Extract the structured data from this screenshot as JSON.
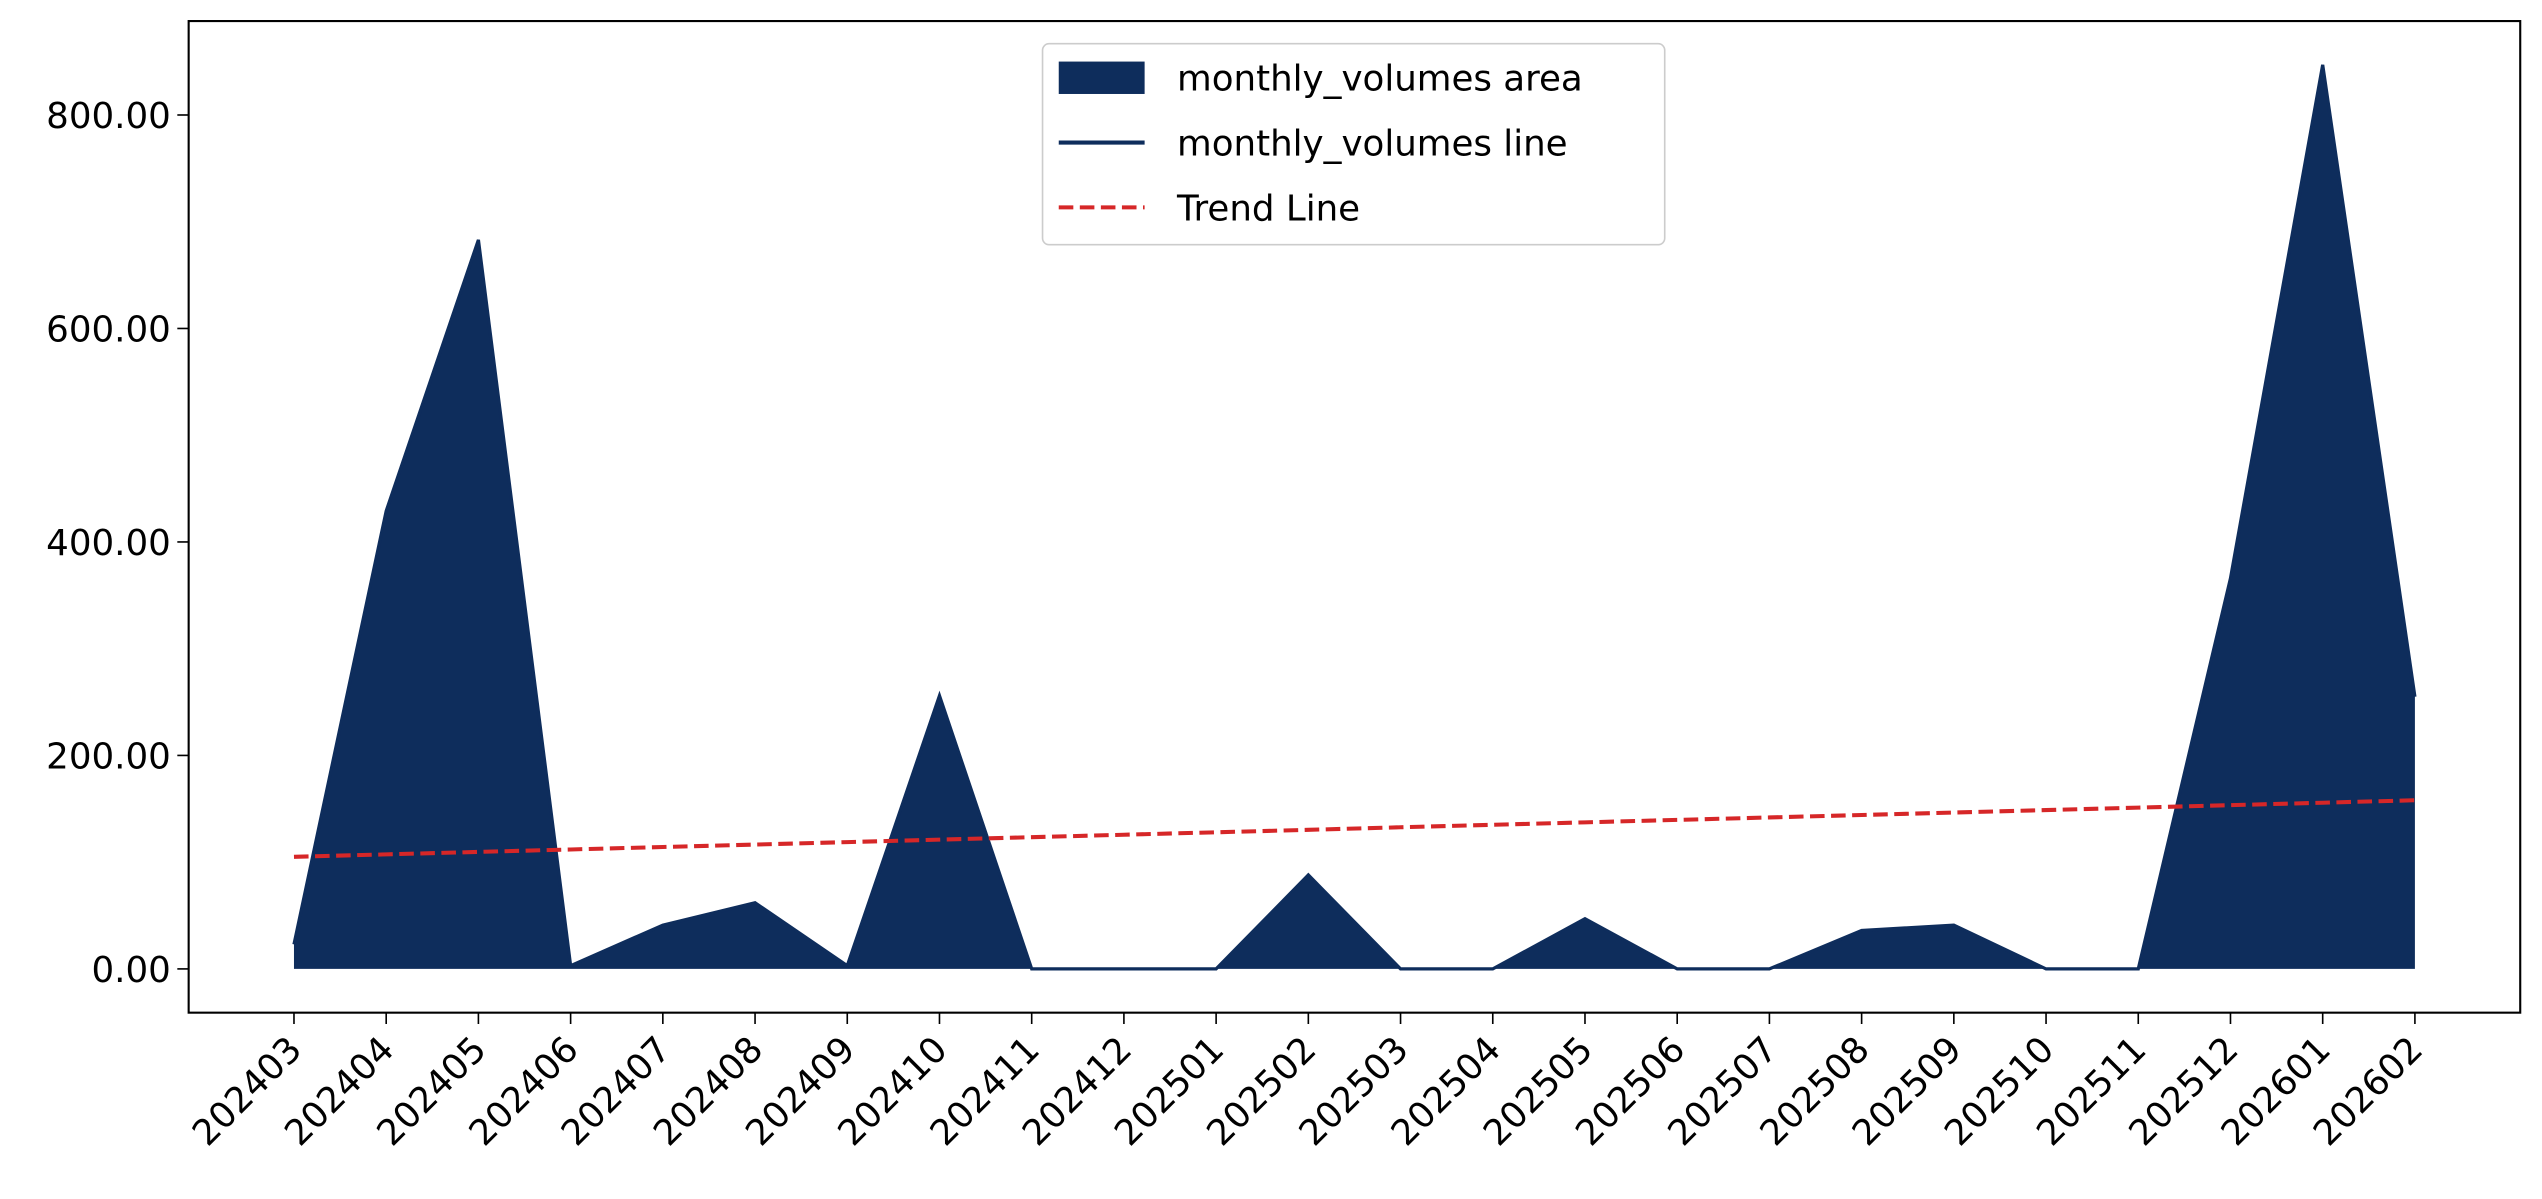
{
  "chart_data": {
    "type": "area",
    "categories": [
      "202403",
      "202404",
      "202405",
      "202406",
      "202407",
      "202408",
      "202409",
      "202410",
      "202411",
      "202412",
      "202501",
      "202502",
      "202503",
      "202504",
      "202505",
      "202506",
      "202507",
      "202508",
      "202509",
      "202510",
      "202511",
      "202512",
      "202601",
      "202602"
    ],
    "series": [
      {
        "name": "monthly_volumes area",
        "color": "#0e2d5c",
        "values": [
          23,
          429,
          683,
          3,
          41,
          62,
          3,
          256,
          0,
          0,
          0,
          88,
          0,
          0,
          47,
          0,
          0,
          36,
          41,
          0,
          0,
          366,
          847,
          255
        ]
      },
      {
        "name": "monthly_volumes line",
        "color": "#0e2d5c",
        "values": [
          23,
          429,
          683,
          3,
          41,
          62,
          3,
          256,
          0,
          0,
          0,
          88,
          0,
          0,
          47,
          0,
          0,
          36,
          41,
          0,
          0,
          366,
          847,
          255
        ]
      },
      {
        "name": "Trend Line",
        "color": "#d62728",
        "values": [
          105,
          107.3,
          109.6,
          111.9,
          114.2,
          116.5,
          118.8,
          121.1,
          123.4,
          125.7,
          128.0,
          130.3,
          132.7,
          135.0,
          137.3,
          139.6,
          141.9,
          144.2,
          146.5,
          148.8,
          151.1,
          153.4,
          155.7,
          158
        ]
      }
    ],
    "ylim": [
      -41,
      888
    ],
    "yticks": [
      {
        "value": 0,
        "label": "0.00"
      },
      {
        "value": 200,
        "label": "200.00"
      },
      {
        "value": 400,
        "label": "400.00"
      },
      {
        "value": 600,
        "label": "600.00"
      },
      {
        "value": 800,
        "label": "800.00"
      }
    ],
    "legend": "upper center"
  }
}
